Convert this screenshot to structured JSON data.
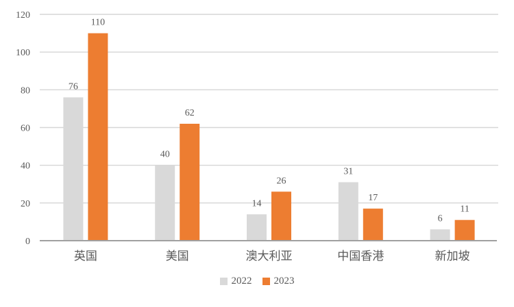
{
  "chart_data": {
    "type": "bar",
    "title": "",
    "xlabel": "",
    "ylabel": "",
    "categories": [
      "英国",
      "美国",
      "澳大利亚",
      "中国香港",
      "新加坡"
    ],
    "series": [
      {
        "name": "2022",
        "color": "#d9d9d9",
        "values": [
          76,
          40,
          14,
          31,
          6
        ]
      },
      {
        "name": "2023",
        "color": "#ed7d31",
        "values": [
          110,
          62,
          26,
          17,
          11
        ]
      }
    ],
    "ylim": [
      0,
      120
    ],
    "yticks": [
      0,
      20,
      40,
      60,
      80,
      100,
      120
    ],
    "grid": true,
    "data_labels": true,
    "legend_position": "bottom"
  },
  "colors": {
    "series_2022": "#d9d9d9",
    "series_2023": "#ed7d31",
    "text": "#595959",
    "gridline": "#d6d6d6",
    "axis_line": "#a0a0a0",
    "background": "#ffffff"
  },
  "legend": {
    "items": [
      {
        "label": "2022",
        "color": "#d9d9d9"
      },
      {
        "label": "2023",
        "color": "#ed7d31"
      }
    ]
  }
}
